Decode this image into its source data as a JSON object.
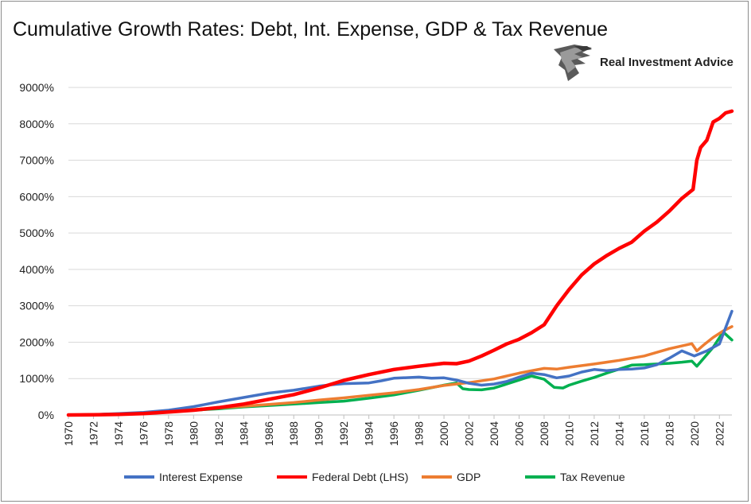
{
  "chart_data": {
    "type": "line",
    "title": "Cumulative Growth Rates: Debt, Int. Expense, GDP & Tax Revenue",
    "xlabel": "",
    "ylabel": "",
    "xlim": [
      1970,
      2023
    ],
    "ylim": [
      0,
      9000
    ],
    "y_ticks": [
      "0%",
      "1000%",
      "2000%",
      "3000%",
      "4000%",
      "5000%",
      "6000%",
      "7000%",
      "8000%",
      "9000%"
    ],
    "x_ticks": [
      "1970",
      "1972",
      "1974",
      "1976",
      "1978",
      "1980",
      "1982",
      "1984",
      "1986",
      "1988",
      "1990",
      "1992",
      "1994",
      "1996",
      "1998",
      "2000",
      "2002",
      "2004",
      "2006",
      "2008",
      "2010",
      "2012",
      "2014",
      "2016",
      "2018",
      "2020",
      "2022"
    ],
    "grid": "horizontal",
    "legend": "bottom",
    "series": [
      {
        "name": "Interest Expense",
        "color": "#4472C4",
        "points": [
          [
            1970,
            0
          ],
          [
            1972,
            10
          ],
          [
            1974,
            40
          ],
          [
            1976,
            70
          ],
          [
            1978,
            130
          ],
          [
            1980,
            230
          ],
          [
            1982,
            360
          ],
          [
            1984,
            480
          ],
          [
            1986,
            600
          ],
          [
            1988,
            680
          ],
          [
            1990,
            790
          ],
          [
            1991,
            830
          ],
          [
            1992,
            860
          ],
          [
            1994,
            880
          ],
          [
            1995,
            940
          ],
          [
            1996,
            1010
          ],
          [
            1998,
            1040
          ],
          [
            1999,
            1010
          ],
          [
            2000,
            1020
          ],
          [
            2001,
            960
          ],
          [
            2002,
            870
          ],
          [
            2003,
            820
          ],
          [
            2004,
            850
          ],
          [
            2005,
            920
          ],
          [
            2006,
            1040
          ],
          [
            2007,
            1150
          ],
          [
            2008,
            1110
          ],
          [
            2009,
            1020
          ],
          [
            2010,
            1070
          ],
          [
            2011,
            1180
          ],
          [
            2012,
            1250
          ],
          [
            2013,
            1220
          ],
          [
            2014,
            1250
          ],
          [
            2015,
            1260
          ],
          [
            2016,
            1290
          ],
          [
            2017,
            1380
          ],
          [
            2018,
            1560
          ],
          [
            2019,
            1760
          ],
          [
            2020,
            1620
          ],
          [
            2021,
            1760
          ],
          [
            2022,
            1950
          ],
          [
            2023,
            2850
          ]
        ]
      },
      {
        "name": "Federal Debt (LHS)",
        "color": "#FF0000",
        "points": [
          [
            1970,
            0
          ],
          [
            1972,
            5
          ],
          [
            1974,
            15
          ],
          [
            1976,
            40
          ],
          [
            1978,
            80
          ],
          [
            1980,
            130
          ],
          [
            1982,
            200
          ],
          [
            1984,
            300
          ],
          [
            1986,
            430
          ],
          [
            1988,
            560
          ],
          [
            1990,
            740
          ],
          [
            1992,
            950
          ],
          [
            1994,
            1110
          ],
          [
            1996,
            1250
          ],
          [
            1998,
            1340
          ],
          [
            2000,
            1420
          ],
          [
            2001,
            1410
          ],
          [
            2002,
            1480
          ],
          [
            2003,
            1620
          ],
          [
            2004,
            1780
          ],
          [
            2005,
            1950
          ],
          [
            2006,
            2080
          ],
          [
            2007,
            2260
          ],
          [
            2008,
            2480
          ],
          [
            2009,
            3000
          ],
          [
            2010,
            3450
          ],
          [
            2011,
            3850
          ],
          [
            2012,
            4150
          ],
          [
            2013,
            4380
          ],
          [
            2014,
            4580
          ],
          [
            2015,
            4750
          ],
          [
            2016,
            5050
          ],
          [
            2017,
            5300
          ],
          [
            2018,
            5600
          ],
          [
            2019,
            5950
          ],
          [
            2019.9,
            6200
          ],
          [
            2020.2,
            7000
          ],
          [
            2020.5,
            7350
          ],
          [
            2021,
            7550
          ],
          [
            2021.5,
            8050
          ],
          [
            2022,
            8150
          ],
          [
            2022.5,
            8300
          ],
          [
            2023,
            8350
          ]
        ]
      },
      {
        "name": "GDP",
        "color": "#ED7D31",
        "points": [
          [
            1970,
            0
          ],
          [
            1972,
            10
          ],
          [
            1974,
            25
          ],
          [
            1976,
            50
          ],
          [
            1978,
            100
          ],
          [
            1980,
            150
          ],
          [
            1982,
            190
          ],
          [
            1984,
            240
          ],
          [
            1986,
            290
          ],
          [
            1988,
            340
          ],
          [
            1990,
            410
          ],
          [
            1992,
            470
          ],
          [
            1994,
            540
          ],
          [
            1996,
            610
          ],
          [
            1998,
            700
          ],
          [
            2000,
            810
          ],
          [
            2002,
            890
          ],
          [
            2004,
            990
          ],
          [
            2006,
            1150
          ],
          [
            2008,
            1280
          ],
          [
            2009,
            1260
          ],
          [
            2010,
            1310
          ],
          [
            2012,
            1400
          ],
          [
            2014,
            1500
          ],
          [
            2016,
            1620
          ],
          [
            2018,
            1820
          ],
          [
            2019.8,
            1960
          ],
          [
            2020.2,
            1760
          ],
          [
            2020.8,
            1940
          ],
          [
            2021.5,
            2130
          ],
          [
            2022.3,
            2310
          ],
          [
            2023,
            2430
          ]
        ]
      },
      {
        "name": "Tax Revenue",
        "color": "#00B050",
        "points": [
          [
            1970,
            0
          ],
          [
            1972,
            10
          ],
          [
            1974,
            30
          ],
          [
            1976,
            50
          ],
          [
            1978,
            90
          ],
          [
            1980,
            130
          ],
          [
            1982,
            170
          ],
          [
            1984,
            220
          ],
          [
            1986,
            260
          ],
          [
            1988,
            300
          ],
          [
            1990,
            340
          ],
          [
            1992,
            380
          ],
          [
            1994,
            460
          ],
          [
            1996,
            550
          ],
          [
            1998,
            680
          ],
          [
            2000,
            820
          ],
          [
            2001,
            880
          ],
          [
            2001.5,
            720
          ],
          [
            2002,
            700
          ],
          [
            2003,
            690
          ],
          [
            2004,
            740
          ],
          [
            2005,
            850
          ],
          [
            2006,
            960
          ],
          [
            2007,
            1070
          ],
          [
            2008,
            980
          ],
          [
            2008.8,
            760
          ],
          [
            2009.5,
            740
          ],
          [
            2010,
            820
          ],
          [
            2011,
            930
          ],
          [
            2012,
            1030
          ],
          [
            2013,
            1150
          ],
          [
            2014,
            1260
          ],
          [
            2015,
            1370
          ],
          [
            2016,
            1380
          ],
          [
            2017,
            1400
          ],
          [
            2018,
            1420
          ],
          [
            2019,
            1450
          ],
          [
            2019.8,
            1480
          ],
          [
            2020.2,
            1340
          ],
          [
            2020.8,
            1580
          ],
          [
            2021.5,
            1860
          ],
          [
            2022.3,
            2280
          ],
          [
            2023,
            2060
          ]
        ]
      }
    ]
  },
  "logo": {
    "text": "Real Investment Advice"
  }
}
